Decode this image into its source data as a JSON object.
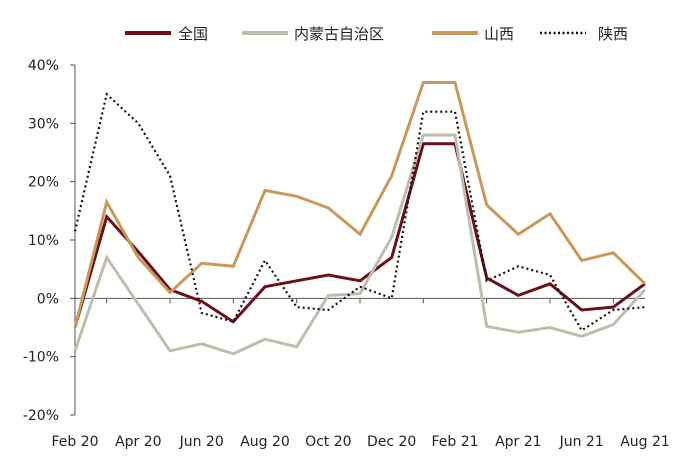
{
  "chart_data": {
    "type": "line",
    "categories": [
      "Feb 20",
      "Mar 20",
      "Apr 20",
      "May 20",
      "Jun 20",
      "Jul 20",
      "Aug 20",
      "Sep 20",
      "Oct 20",
      "Nov 20",
      "Dec 20",
      "Jan 21",
      "Feb 21",
      "Mar 21",
      "Apr 21",
      "May 21",
      "Jun 21",
      "Jul 21",
      "Aug 21"
    ],
    "x_tick_labels": [
      "Feb 20",
      "Apr 20",
      "Jun 20",
      "Aug 20",
      "Oct 20",
      "Dec 20",
      "Feb 21",
      "Apr 21",
      "Jun 21",
      "Aug 21"
    ],
    "y_tick_labels": [
      "40%",
      "30%",
      "20%",
      "10%",
      "0%",
      "-10%",
      "-20%"
    ],
    "ylim": [
      -20,
      40
    ],
    "y_unit": "%",
    "grid": false,
    "legend_placement": "top",
    "series": [
      {
        "name": "全国",
        "color": "#6b0f1a",
        "style": "solid",
        "values": [
          -5.0,
          14.0,
          8.0,
          1.5,
          -0.5,
          -4.0,
          2.0,
          3.0,
          4.0,
          3.0,
          7.0,
          26.5,
          26.5,
          3.5,
          0.5,
          2.5,
          -2.0,
          -1.5,
          2.5
        ]
      },
      {
        "name": "内蒙古自治区",
        "color": "#bfbdad",
        "style": "solid",
        "values": [
          -9.0,
          7.0,
          -1.0,
          -9.0,
          -7.8,
          -9.5,
          -7.0,
          -8.3,
          0.5,
          0.8,
          10.5,
          28.0,
          28.0,
          -4.8,
          -5.8,
          -5.0,
          -6.5,
          -4.5,
          1.5
        ]
      },
      {
        "name": "山西",
        "color": "#c89a5a",
        "style": "solid",
        "values": [
          -5.0,
          16.5,
          7.0,
          1.0,
          6.0,
          5.5,
          18.5,
          17.5,
          15.5,
          11.0,
          21.0,
          37.0,
          37.0,
          16.0,
          11.0,
          14.5,
          6.5,
          7.8,
          2.5
        ]
      },
      {
        "name": "陕西",
        "color": "#111111",
        "style": "dotted",
        "values": [
          11.5,
          35.0,
          30.0,
          21.0,
          -2.5,
          -4.0,
          6.5,
          -1.5,
          -2.0,
          2.0,
          0.0,
          32.0,
          32.0,
          3.0,
          5.5,
          4.0,
          -5.5,
          -2.0,
          -1.5
        ]
      }
    ]
  }
}
